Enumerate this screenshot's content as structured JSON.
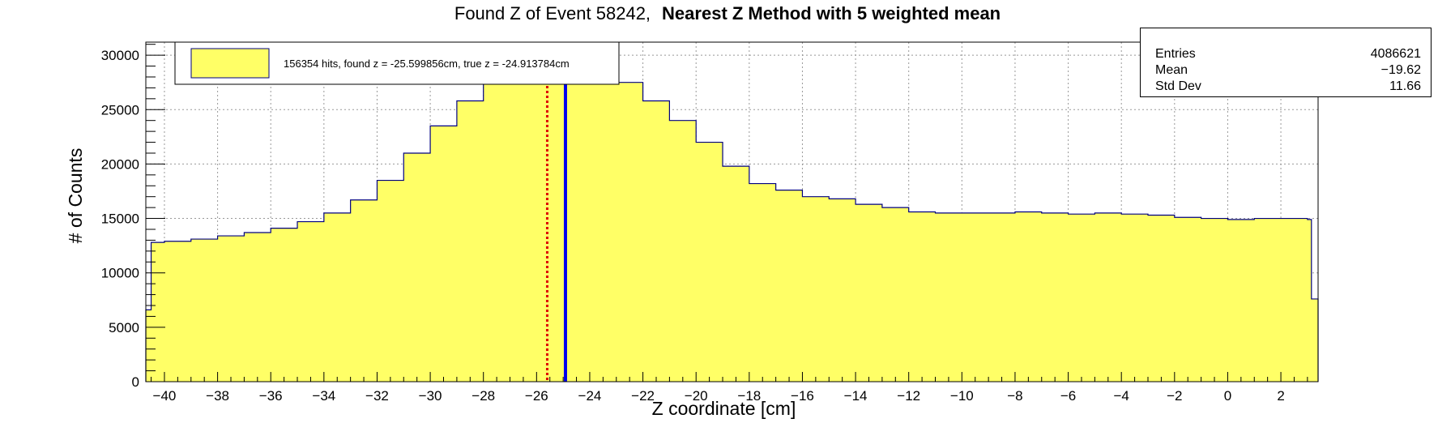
{
  "title": {
    "main": "Found Z of Event 58242,",
    "bold": "Nearest Z Method with 5 weighted mean"
  },
  "legend": {
    "label": "156354 hits, found z = -25.599856cm, true z = -24.913784cm",
    "fill_color": "#ffff66"
  },
  "stats": {
    "entries_label": "Entries",
    "entries_value": "4086621",
    "mean_label": "Mean",
    "mean_value": "−19.62",
    "stddev_label": "Std Dev",
    "stddev_value": "11.66"
  },
  "chart_data": {
    "type": "histogram",
    "xlabel": "Z coordinate [cm]",
    "ylabel": "# of Counts",
    "xlim": [
      -40.7,
      3.4
    ],
    "ylim": [
      0,
      31200
    ],
    "x_ticks": [
      -40,
      -38,
      -36,
      -34,
      -32,
      -30,
      -28,
      -26,
      -24,
      -22,
      -20,
      -18,
      -16,
      -14,
      -12,
      -10,
      -8,
      -6,
      -4,
      -2,
      0,
      2
    ],
    "y_ticks": [
      0,
      5000,
      10000,
      15000,
      20000,
      25000,
      30000
    ],
    "grid": true,
    "fill_color": "#ffff66",
    "line_color": "#000080",
    "points_xy": [
      [
        -40.7,
        6600
      ],
      [
        -40.5,
        12800
      ],
      [
        -40.0,
        12900
      ],
      [
        -39.0,
        13100
      ],
      [
        -38.0,
        13400
      ],
      [
        -37.0,
        13700
      ],
      [
        -36.0,
        14100
      ],
      [
        -35.0,
        14700
      ],
      [
        -34.0,
        15500
      ],
      [
        -33.0,
        16700
      ],
      [
        -32.0,
        18500
      ],
      [
        -31.0,
        21000
      ],
      [
        -30.0,
        23500
      ],
      [
        -29.0,
        25800
      ],
      [
        -28.0,
        27500
      ],
      [
        -27.0,
        28800
      ],
      [
        -26.0,
        29800
      ],
      [
        -25.0,
        30300
      ],
      [
        -24.0,
        29700
      ],
      [
        -23.0,
        27500
      ],
      [
        -22.0,
        25800
      ],
      [
        -21.0,
        24000
      ],
      [
        -20.0,
        22000
      ],
      [
        -19.0,
        19800
      ],
      [
        -18.0,
        18200
      ],
      [
        -17.0,
        17600
      ],
      [
        -16.0,
        17000
      ],
      [
        -15.0,
        16800
      ],
      [
        -14.0,
        16300
      ],
      [
        -13.0,
        16000
      ],
      [
        -12.0,
        15600
      ],
      [
        -11.0,
        15500
      ],
      [
        -10.0,
        15500
      ],
      [
        -9.0,
        15500
      ],
      [
        -8.0,
        15600
      ],
      [
        -7.0,
        15500
      ],
      [
        -6.0,
        15400
      ],
      [
        -5.0,
        15500
      ],
      [
        -4.0,
        15400
      ],
      [
        -3.0,
        15300
      ],
      [
        -2.0,
        15100
      ],
      [
        -1.0,
        15000
      ],
      [
        0.0,
        14900
      ],
      [
        1.0,
        15000
      ],
      [
        2.0,
        15000
      ],
      [
        3.0,
        14900
      ],
      [
        3.15,
        7600
      ],
      [
        3.4,
        7600
      ]
    ],
    "markers": [
      {
        "x": -25.599856,
        "color": "#dd0000",
        "style": "dotted"
      },
      {
        "x": -24.913784,
        "color": "#0000ee",
        "style": "solid"
      }
    ]
  }
}
